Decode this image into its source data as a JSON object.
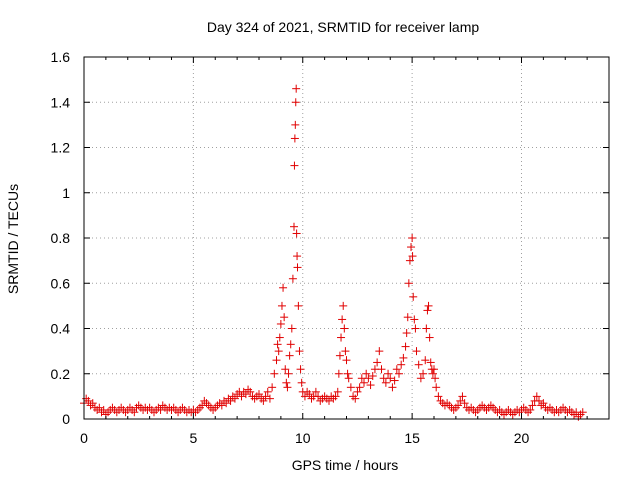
{
  "chart_data": {
    "type": "scatter",
    "title": "Day 324 of 2021, SRMTID for receiver lamp",
    "xlabel": "GPS time / hours",
    "ylabel": "SRMTID / TECUs",
    "xlim": [
      0,
      24
    ],
    "ylim": [
      0,
      1.6
    ],
    "grid": true,
    "marker": "plus",
    "color": "#e00000",
    "x_ticks": [
      0,
      5,
      10,
      15,
      20
    ],
    "x_tick_labels": [
      "0",
      "5",
      "10",
      "15",
      "20"
    ],
    "y_ticks": [
      0,
      0.2,
      0.4,
      0.6,
      0.8,
      1,
      1.2,
      1.4,
      1.6
    ],
    "y_tick_labels": [
      "0",
      "0.2",
      "0.4",
      "0.6",
      "0.8",
      "1",
      "1.2",
      "1.4",
      "1.6"
    ],
    "series": [
      {
        "name": "SRMTID",
        "points": [
          [
            0.0,
            0.07
          ],
          [
            0.1,
            0.09
          ],
          [
            0.2,
            0.08
          ],
          [
            0.3,
            0.06
          ],
          [
            0.4,
            0.07
          ],
          [
            0.5,
            0.05
          ],
          [
            0.6,
            0.04
          ],
          [
            0.7,
            0.05
          ],
          [
            0.8,
            0.03
          ],
          [
            0.9,
            0.04
          ],
          [
            1.0,
            0.02
          ],
          [
            1.1,
            0.03
          ],
          [
            1.2,
            0.04
          ],
          [
            1.3,
            0.05
          ],
          [
            1.4,
            0.04
          ],
          [
            1.5,
            0.03
          ],
          [
            1.6,
            0.04
          ],
          [
            1.7,
            0.05
          ],
          [
            1.8,
            0.04
          ],
          [
            1.9,
            0.03
          ],
          [
            2.0,
            0.04
          ],
          [
            2.1,
            0.05
          ],
          [
            2.2,
            0.04
          ],
          [
            2.3,
            0.03
          ],
          [
            2.4,
            0.05
          ],
          [
            2.5,
            0.06
          ],
          [
            2.6,
            0.05
          ],
          [
            2.7,
            0.04
          ],
          [
            2.8,
            0.05
          ],
          [
            2.9,
            0.04
          ],
          [
            3.0,
            0.05
          ],
          [
            3.1,
            0.04
          ],
          [
            3.2,
            0.03
          ],
          [
            3.3,
            0.04
          ],
          [
            3.4,
            0.05
          ],
          [
            3.5,
            0.04
          ],
          [
            3.6,
            0.06
          ],
          [
            3.7,
            0.05
          ],
          [
            3.8,
            0.04
          ],
          [
            3.9,
            0.05
          ],
          [
            4.0,
            0.04
          ],
          [
            4.1,
            0.05
          ],
          [
            4.2,
            0.04
          ],
          [
            4.3,
            0.03
          ],
          [
            4.4,
            0.04
          ],
          [
            4.5,
            0.05
          ],
          [
            4.6,
            0.04
          ],
          [
            4.7,
            0.03
          ],
          [
            4.8,
            0.04
          ],
          [
            4.9,
            0.03
          ],
          [
            5.0,
            0.04
          ],
          [
            5.1,
            0.03
          ],
          [
            5.2,
            0.04
          ],
          [
            5.3,
            0.05
          ],
          [
            5.4,
            0.06
          ],
          [
            5.5,
            0.08
          ],
          [
            5.6,
            0.07
          ],
          [
            5.7,
            0.06
          ],
          [
            5.8,
            0.05
          ],
          [
            5.9,
            0.04
          ],
          [
            6.0,
            0.05
          ],
          [
            6.1,
            0.06
          ],
          [
            6.2,
            0.07
          ],
          [
            6.3,
            0.06
          ],
          [
            6.4,
            0.08
          ],
          [
            6.5,
            0.07
          ],
          [
            6.6,
            0.09
          ],
          [
            6.7,
            0.08
          ],
          [
            6.8,
            0.1
          ],
          [
            6.9,
            0.09
          ],
          [
            7.0,
            0.11
          ],
          [
            7.1,
            0.12
          ],
          [
            7.2,
            0.1
          ],
          [
            7.3,
            0.12
          ],
          [
            7.4,
            0.11
          ],
          [
            7.5,
            0.13
          ],
          [
            7.6,
            0.12
          ],
          [
            7.7,
            0.1
          ],
          [
            7.8,
            0.09
          ],
          [
            7.9,
            0.1
          ],
          [
            8.0,
            0.11
          ],
          [
            8.1,
            0.09
          ],
          [
            8.2,
            0.08
          ],
          [
            8.3,
            0.1
          ],
          [
            8.4,
            0.12
          ],
          [
            8.5,
            0.09
          ],
          [
            8.6,
            0.14
          ],
          [
            8.7,
            0.2
          ],
          [
            8.8,
            0.26
          ],
          [
            8.85,
            0.33
          ],
          [
            8.9,
            0.3
          ],
          [
            8.95,
            0.36
          ],
          [
            9.0,
            0.42
          ],
          [
            9.05,
            0.5
          ],
          [
            9.1,
            0.58
          ],
          [
            9.15,
            0.45
          ],
          [
            9.2,
            0.22
          ],
          [
            9.25,
            0.16
          ],
          [
            9.3,
            0.14
          ],
          [
            9.35,
            0.2
          ],
          [
            9.4,
            0.28
          ],
          [
            9.45,
            0.33
          ],
          [
            9.5,
            0.4
          ],
          [
            9.55,
            0.62
          ],
          [
            9.6,
            0.85
          ],
          [
            9.62,
            1.12
          ],
          [
            9.64,
            1.24
          ],
          [
            9.66,
            1.3
          ],
          [
            9.68,
            1.4
          ],
          [
            9.7,
            1.46
          ],
          [
            9.72,
            0.82
          ],
          [
            9.74,
            0.72
          ],
          [
            9.76,
            0.67
          ],
          [
            9.8,
            0.5
          ],
          [
            9.85,
            0.3
          ],
          [
            9.9,
            0.22
          ],
          [
            9.95,
            0.16
          ],
          [
            10.0,
            0.12
          ],
          [
            10.1,
            0.1
          ],
          [
            10.2,
            0.12
          ],
          [
            10.3,
            0.11
          ],
          [
            10.4,
            0.09
          ],
          [
            10.5,
            0.1
          ],
          [
            10.6,
            0.12
          ],
          [
            10.7,
            0.1
          ],
          [
            10.8,
            0.08
          ],
          [
            10.9,
            0.09
          ],
          [
            11.0,
            0.1
          ],
          [
            11.1,
            0.09
          ],
          [
            11.2,
            0.08
          ],
          [
            11.3,
            0.1
          ],
          [
            11.4,
            0.09
          ],
          [
            11.5,
            0.1
          ],
          [
            11.6,
            0.12
          ],
          [
            11.65,
            0.2
          ],
          [
            11.7,
            0.28
          ],
          [
            11.75,
            0.36
          ],
          [
            11.8,
            0.44
          ],
          [
            11.85,
            0.5
          ],
          [
            11.9,
            0.4
          ],
          [
            11.95,
            0.3
          ],
          [
            12.0,
            0.26
          ],
          [
            12.05,
            0.2
          ],
          [
            12.1,
            0.18
          ],
          [
            12.2,
            0.14
          ],
          [
            12.3,
            0.1
          ],
          [
            12.4,
            0.09
          ],
          [
            12.5,
            0.12
          ],
          [
            12.6,
            0.14
          ],
          [
            12.7,
            0.18
          ],
          [
            12.8,
            0.16
          ],
          [
            12.9,
            0.2
          ],
          [
            13.0,
            0.18
          ],
          [
            13.1,
            0.15
          ],
          [
            13.2,
            0.19
          ],
          [
            13.3,
            0.22
          ],
          [
            13.4,
            0.25
          ],
          [
            13.5,
            0.3
          ],
          [
            13.6,
            0.22
          ],
          [
            13.7,
            0.18
          ],
          [
            13.8,
            0.16
          ],
          [
            13.9,
            0.2
          ],
          [
            14.0,
            0.18
          ],
          [
            14.1,
            0.14
          ],
          [
            14.2,
            0.17
          ],
          [
            14.3,
            0.22
          ],
          [
            14.4,
            0.2
          ],
          [
            14.5,
            0.24
          ],
          [
            14.6,
            0.27
          ],
          [
            14.7,
            0.32
          ],
          [
            14.75,
            0.38
          ],
          [
            14.8,
            0.45
          ],
          [
            14.85,
            0.6
          ],
          [
            14.9,
            0.7
          ],
          [
            14.95,
            0.76
          ],
          [
            15.0,
            0.8
          ],
          [
            15.02,
            0.72
          ],
          [
            15.05,
            0.54
          ],
          [
            15.1,
            0.44
          ],
          [
            15.15,
            0.4
          ],
          [
            15.2,
            0.3
          ],
          [
            15.3,
            0.24
          ],
          [
            15.4,
            0.18
          ],
          [
            15.5,
            0.2
          ],
          [
            15.6,
            0.26
          ],
          [
            15.65,
            0.4
          ],
          [
            15.7,
            0.48
          ],
          [
            15.75,
            0.5
          ],
          [
            15.8,
            0.36
          ],
          [
            15.85,
            0.25
          ],
          [
            15.9,
            0.22
          ],
          [
            15.95,
            0.2
          ],
          [
            16.0,
            0.22
          ],
          [
            16.05,
            0.18
          ],
          [
            16.1,
            0.14
          ],
          [
            16.2,
            0.1
          ],
          [
            16.3,
            0.08
          ],
          [
            16.4,
            0.07
          ],
          [
            16.5,
            0.06
          ],
          [
            16.6,
            0.07
          ],
          [
            16.7,
            0.06
          ],
          [
            16.8,
            0.05
          ],
          [
            16.9,
            0.04
          ],
          [
            17.0,
            0.05
          ],
          [
            17.1,
            0.06
          ],
          [
            17.2,
            0.08
          ],
          [
            17.3,
            0.1
          ],
          [
            17.4,
            0.07
          ],
          [
            17.5,
            0.05
          ],
          [
            17.6,
            0.04
          ],
          [
            17.7,
            0.05
          ],
          [
            17.8,
            0.04
          ],
          [
            17.9,
            0.03
          ],
          [
            18.0,
            0.04
          ],
          [
            18.1,
            0.05
          ],
          [
            18.2,
            0.06
          ],
          [
            18.3,
            0.05
          ],
          [
            18.4,
            0.04
          ],
          [
            18.5,
            0.05
          ],
          [
            18.6,
            0.06
          ],
          [
            18.7,
            0.05
          ],
          [
            18.8,
            0.04
          ],
          [
            18.9,
            0.03
          ],
          [
            19.0,
            0.04
          ],
          [
            19.1,
            0.03
          ],
          [
            19.2,
            0.02
          ],
          [
            19.3,
            0.03
          ],
          [
            19.4,
            0.04
          ],
          [
            19.5,
            0.03
          ],
          [
            19.6,
            0.02
          ],
          [
            19.7,
            0.03
          ],
          [
            19.8,
            0.04
          ],
          [
            19.9,
            0.03
          ],
          [
            20.0,
            0.04
          ],
          [
            20.1,
            0.05
          ],
          [
            20.2,
            0.04
          ],
          [
            20.3,
            0.03
          ],
          [
            20.4,
            0.04
          ],
          [
            20.5,
            0.06
          ],
          [
            20.6,
            0.08
          ],
          [
            20.7,
            0.1
          ],
          [
            20.8,
            0.08
          ],
          [
            20.9,
            0.06
          ],
          [
            21.0,
            0.07
          ],
          [
            21.1,
            0.05
          ],
          [
            21.2,
            0.04
          ],
          [
            21.3,
            0.05
          ],
          [
            21.4,
            0.04
          ],
          [
            21.5,
            0.03
          ],
          [
            21.6,
            0.04
          ],
          [
            21.7,
            0.03
          ],
          [
            21.8,
            0.04
          ],
          [
            21.9,
            0.05
          ],
          [
            22.0,
            0.04
          ],
          [
            22.1,
            0.03
          ],
          [
            22.2,
            0.04
          ],
          [
            22.3,
            0.03
          ],
          [
            22.4,
            0.02
          ],
          [
            22.5,
            0.03
          ],
          [
            22.6,
            0.01
          ],
          [
            22.7,
            0.02
          ],
          [
            22.8,
            0.03
          ]
        ]
      }
    ]
  }
}
